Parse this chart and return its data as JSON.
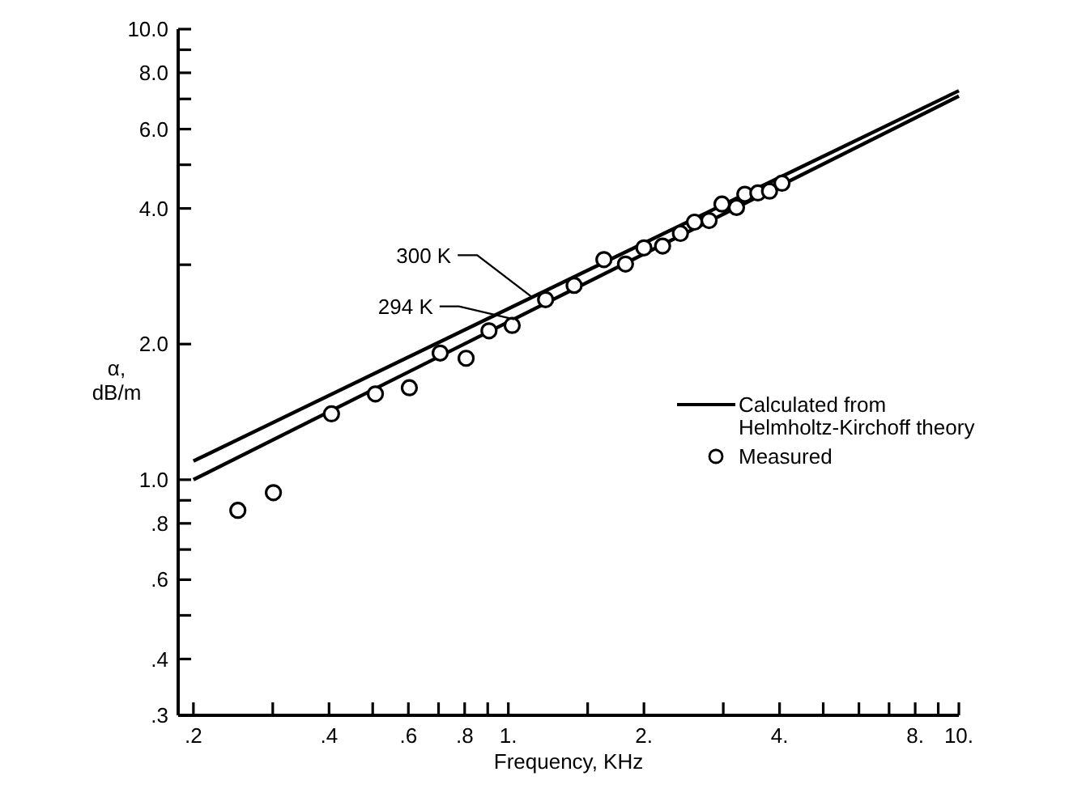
{
  "chart_data": {
    "type": "line",
    "xlabel": "Frequency, KHz",
    "ylabel": "α, dB/m",
    "log": "xy",
    "grid": false,
    "legend": "right",
    "xlim": [
      0.185,
      10
    ],
    "ylim": [
      0.3,
      10
    ],
    "xticks": [
      {
        "value": 0.2,
        "label": ".2"
      },
      {
        "value": 0.3,
        "label": null
      },
      {
        "value": 0.4,
        "label": ".4"
      },
      {
        "value": 0.5,
        "label": null
      },
      {
        "value": 0.6,
        "label": ".6"
      },
      {
        "value": 0.7,
        "label": null
      },
      {
        "value": 0.8,
        "label": ".8"
      },
      {
        "value": 0.9,
        "label": null
      },
      {
        "value": 1,
        "label": "1."
      },
      {
        "value": 1.5,
        "label": null
      },
      {
        "value": 2,
        "label": "2."
      },
      {
        "value": 3,
        "label": null
      },
      {
        "value": 4,
        "label": "4."
      },
      {
        "value": 5,
        "label": null
      },
      {
        "value": 6,
        "label": null
      },
      {
        "value": 7,
        "label": null
      },
      {
        "value": 8,
        "label": "8."
      },
      {
        "value": 9,
        "label": null
      },
      {
        "value": 10,
        "label": "10."
      }
    ],
    "yticks": [
      {
        "value": 0.3,
        "label": ".3"
      },
      {
        "value": 0.4,
        "label": ".4"
      },
      {
        "value": 0.5,
        "label": null
      },
      {
        "value": 0.6,
        "label": ".6"
      },
      {
        "value": 0.7,
        "label": null
      },
      {
        "value": 0.8,
        "label": ".8"
      },
      {
        "value": 0.9,
        "label": null
      },
      {
        "value": 1,
        "label": "1.0"
      },
      {
        "value": 2,
        "label": "2.0"
      },
      {
        "value": 3,
        "label": null
      },
      {
        "value": 4,
        "label": "4.0"
      },
      {
        "value": 5,
        "label": null
      },
      {
        "value": 6,
        "label": "6.0"
      },
      {
        "value": 7,
        "label": null
      },
      {
        "value": 8,
        "label": "8.0"
      },
      {
        "value": 9,
        "label": null
      },
      {
        "value": 10,
        "label": "10.0"
      }
    ],
    "series": [
      {
        "name": "Calculated from Helmholtz-Kirchoff theory",
        "color": "#000000",
        "marker": "none",
        "line_style": "solid",
        "x": [
          0.2,
          10
        ],
        "values": [
          1.1,
          7.3
        ]
      },
      {
        "color": "#000000",
        "marker": "none",
        "line_style": "solid",
        "x": [
          0.2,
          10
        ],
        "values": [
          1.0,
          7.1
        ]
      },
      {
        "type": "scatter",
        "name": "Measured",
        "color": "#000000",
        "marker": "circle",
        "x": [
          0.251,
          0.301,
          0.405,
          0.507,
          0.603,
          0.706,
          0.806,
          0.906,
          1.02,
          1.21,
          1.4,
          1.63,
          1.82,
          2.0,
          2.2,
          2.41,
          2.59,
          2.79,
          2.98,
          3.21,
          3.35,
          3.58,
          3.8,
          4.05
        ],
        "values": [
          0.855,
          0.936,
          1.4,
          1.55,
          1.6,
          1.91,
          1.86,
          2.14,
          2.2,
          2.51,
          2.7,
          3.08,
          3.01,
          3.27,
          3.3,
          3.52,
          3.73,
          3.76,
          4.09,
          4.02,
          4.3,
          4.33,
          4.37,
          4.55
        ]
      }
    ],
    "annotations": [
      {
        "text": "300 K",
        "x": 1.13,
        "y": 2.54
      },
      {
        "text": "294 K",
        "x": 1.03,
        "y": 2.27
      }
    ]
  }
}
